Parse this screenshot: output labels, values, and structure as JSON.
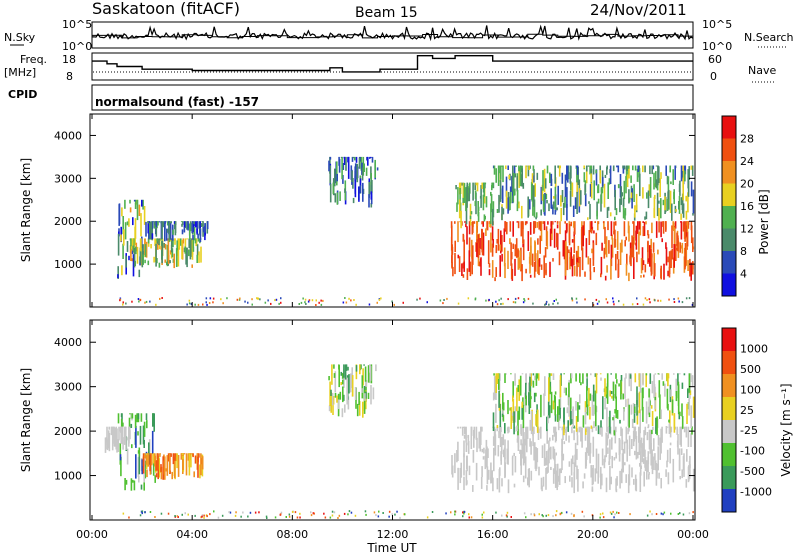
{
  "header": {
    "station": "Saskatoon (fitACF)",
    "beam": "Beam 15",
    "date": "24/Nov/2011"
  },
  "labels": {
    "nsky": "N.Sky",
    "nsearch": "N.Search",
    "freq_line1": "Freq.",
    "freq_line2": "[MHz]",
    "nave": "Nave",
    "cpid": "CPID",
    "cpid_value": "normalsound (fast) -157"
  },
  "colors": {
    "power": [
      "#1010e0",
      "#2a4ab8",
      "#4a8a6a",
      "#50b050",
      "#e8d020",
      "#f09020",
      "#f05010",
      "#e81010"
    ],
    "velocity": [
      "#e81010",
      "#f05010",
      "#f09020",
      "#e8d020",
      "#c8c8c8",
      "#50c030",
      "#3a9a5a",
      "#2040c0"
    ]
  },
  "chart_data": [
    {
      "type": "line",
      "name": "noise-panel",
      "left_label": "N.Sky",
      "right_label": "N.Search",
      "left_ticks": [
        "10^5",
        "10^0"
      ],
      "right_ticks": [
        "10^5",
        "10^0"
      ]
    },
    {
      "type": "line",
      "name": "frequency-panel",
      "left_label": "Freq. [MHz]",
      "right_label": "Nave",
      "left_ticks": [
        18,
        8
      ],
      "right_ticks": [
        60,
        0
      ],
      "frequency_steps": [
        [
          0.0,
          15
        ],
        [
          0.6,
          15
        ],
        [
          0.6,
          14
        ],
        [
          1.0,
          14
        ],
        [
          1.0,
          13
        ],
        [
          2.0,
          13
        ],
        [
          2.0,
          12
        ],
        [
          4.0,
          12
        ],
        [
          4.0,
          11.5
        ],
        [
          9.5,
          11.5
        ],
        [
          9.5,
          12.5
        ],
        [
          10.0,
          12.5
        ],
        [
          10.0,
          11
        ],
        [
          11.5,
          11
        ],
        [
          11.5,
          12
        ],
        [
          13.0,
          12
        ],
        [
          13.0,
          17
        ],
        [
          13.6,
          17
        ],
        [
          13.6,
          16
        ],
        [
          14.5,
          16
        ],
        [
          14.5,
          17
        ],
        [
          16.0,
          17
        ],
        [
          16.0,
          15
        ],
        [
          24.0,
          15
        ]
      ]
    },
    {
      "type": "heatmap",
      "name": "power",
      "ylabel": "Slant Range [km]",
      "yticks": [
        1000,
        2000,
        3000,
        4000
      ],
      "colorbar_label": "Power [dB]",
      "colorbar_ticks": [
        4,
        8,
        12,
        16,
        20,
        24,
        28
      ],
      "clusters": [
        {
          "t": [
            1.0,
            2.2
          ],
          "r": [
            650,
            2500
          ],
          "level": [
            0,
            5
          ]
        },
        {
          "t": [
            1.5,
            4.4
          ],
          "r": [
            900,
            1600
          ],
          "level": [
            2,
            5
          ]
        },
        {
          "t": [
            2.2,
            4.6
          ],
          "r": [
            1500,
            2000
          ],
          "level": [
            0,
            3
          ]
        },
        {
          "t": [
            9.4,
            11.4
          ],
          "r": [
            2300,
            3500
          ],
          "level": [
            0,
            3
          ]
        },
        {
          "t": [
            14.3,
            24.0
          ],
          "r": [
            600,
            2000
          ],
          "level": [
            5,
            7
          ]
        },
        {
          "t": [
            16.0,
            24.0
          ],
          "r": [
            2000,
            3300
          ],
          "level": [
            1,
            4
          ]
        },
        {
          "t": [
            14.5,
            16.0
          ],
          "r": [
            1800,
            2900
          ],
          "level": [
            2,
            4
          ]
        }
      ]
    },
    {
      "type": "heatmap",
      "name": "velocity",
      "ylabel": "Slant Range [km]",
      "yticks": [
        1000,
        2000,
        3000,
        4000
      ],
      "colorbar_label": "Velocity [m s⁻¹]",
      "colorbar_ticks": [
        -1000,
        -500,
        -100,
        -25,
        25,
        100,
        500,
        1000
      ],
      "clusters": [
        {
          "t": [
            1.0,
            2.5
          ],
          "r": [
            650,
            2400
          ],
          "level": [
            4,
            7
          ]
        },
        {
          "t": [
            2.0,
            4.4
          ],
          "r": [
            900,
            1500
          ],
          "level": [
            1,
            3
          ]
        },
        {
          "t": [
            0.5,
            1.5
          ],
          "r": [
            1500,
            2100
          ],
          "level": [
            4,
            4
          ]
        },
        {
          "t": [
            9.4,
            11.4
          ],
          "r": [
            2300,
            3500
          ],
          "level": [
            3,
            6
          ]
        },
        {
          "t": [
            14.3,
            24.0
          ],
          "r": [
            600,
            2100
          ],
          "level": [
            4,
            4
          ]
        },
        {
          "t": [
            16.0,
            24.0
          ],
          "r": [
            1900,
            3300
          ],
          "level": [
            3,
            6
          ]
        }
      ]
    }
  ],
  "xaxis": {
    "ticks": [
      "00:00",
      "04:00",
      "08:00",
      "12:00",
      "16:00",
      "20:00",
      "00:00"
    ],
    "label": "Time UT"
  }
}
